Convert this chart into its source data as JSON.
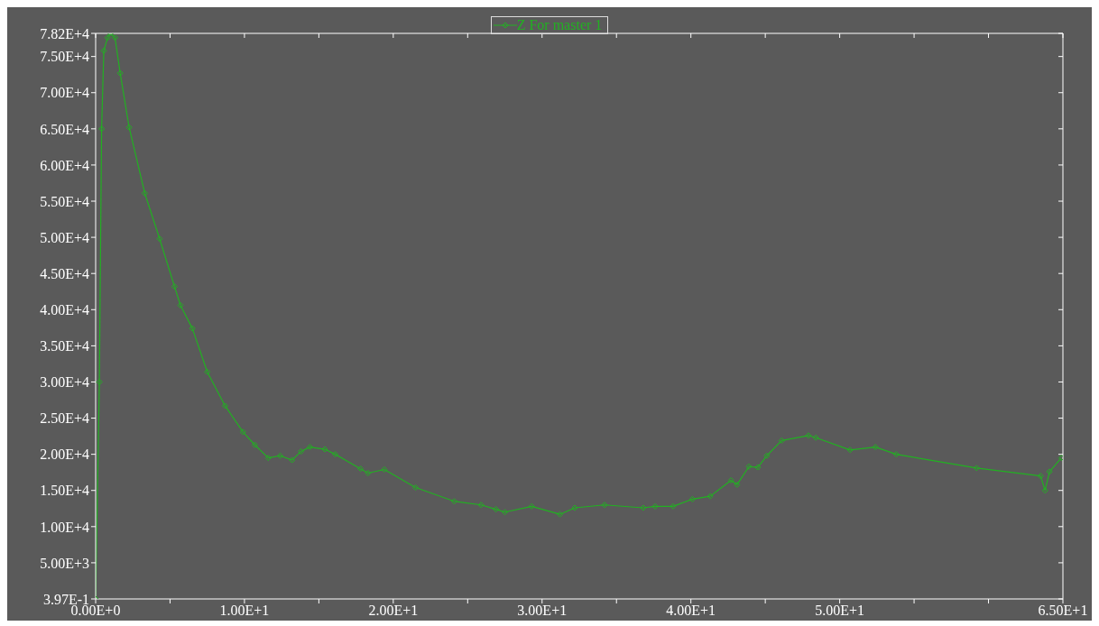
{
  "chart_data": {
    "type": "line",
    "x": [
      0,
      0.25,
      0.4,
      0.55,
      0.8,
      1.0,
      1.3,
      1.65,
      2.25,
      3.3,
      4.3,
      5.3,
      5.7,
      6.5,
      7.5,
      8.7,
      9.9,
      10.7,
      11.6,
      12.4,
      13.2,
      13.8,
      14.4,
      15.4,
      16.1,
      17.8,
      18.3,
      19.4,
      21.5,
      24.1,
      25.9,
      26.9,
      27.5,
      29.3,
      31.2,
      32.2,
      34.2,
      36.8,
      37.6,
      38.8,
      40.1,
      41.3,
      42.7,
      43.1,
      43.9,
      44.5,
      45.1,
      46.1,
      47.9,
      48.4,
      50.7,
      52.4,
      53.8,
      59.2,
      63.5,
      63.8,
      64.1,
      64.9
    ],
    "series": [
      {
        "name": "Z For master 1",
        "color": "#22b022",
        "values": [
          0.397,
          30000,
          65000,
          75800,
          77600,
          78200,
          77600,
          72700,
          65200,
          56100,
          49800,
          43200,
          40600,
          37400,
          31400,
          26700,
          23100,
          21300,
          19500,
          19800,
          19200,
          20400,
          21000,
          20700,
          20000,
          18000,
          17400,
          17900,
          15400,
          13500,
          13000,
          12400,
          12000,
          12800,
          11700,
          12600,
          13000,
          12600,
          12800,
          12800,
          13800,
          14200,
          16400,
          15800,
          18300,
          18200,
          19800,
          21900,
          22600,
          22300,
          20600,
          21000,
          20000,
          18100,
          17000,
          15000,
          17600,
          19500
        ]
      }
    ],
    "xlim": [
      0,
      65
    ],
    "xticks": [
      {
        "value": 0,
        "label": "0.00E+0"
      },
      {
        "value": 5,
        "label": null
      },
      {
        "value": 10,
        "label": "1.00E+1"
      },
      {
        "value": 15,
        "label": null
      },
      {
        "value": 20,
        "label": "2.00E+1"
      },
      {
        "value": 25,
        "label": null
      },
      {
        "value": 30,
        "label": "3.00E+1"
      },
      {
        "value": 35,
        "label": null
      },
      {
        "value": 40,
        "label": "4.00E+1"
      },
      {
        "value": 45,
        "label": null
      },
      {
        "value": 50,
        "label": "5.00E+1"
      },
      {
        "value": 55,
        "label": null
      },
      {
        "value": 60,
        "label": null
      },
      {
        "value": 65,
        "label": "6.50E+1"
      }
    ],
    "ylim": [
      0.397,
      78200
    ],
    "yticks": [
      {
        "value": 0.397,
        "label": "3.97E-1"
      },
      {
        "value": 5000,
        "label": "5.00E+3"
      },
      {
        "value": 10000,
        "label": "1.00E+4"
      },
      {
        "value": 15000,
        "label": "1.50E+4"
      },
      {
        "value": 20000,
        "label": "2.00E+4"
      },
      {
        "value": 25000,
        "label": "2.50E+4"
      },
      {
        "value": 30000,
        "label": "3.00E+4"
      },
      {
        "value": 35000,
        "label": "3.50E+4"
      },
      {
        "value": 40000,
        "label": "4.00E+4"
      },
      {
        "value": 45000,
        "label": "4.50E+4"
      },
      {
        "value": 50000,
        "label": "5.00E+4"
      },
      {
        "value": 55000,
        "label": "5.50E+4"
      },
      {
        "value": 60000,
        "label": "6.00E+4"
      },
      {
        "value": 65000,
        "label": "6.50E+4"
      },
      {
        "value": 70000,
        "label": "7.00E+4"
      },
      {
        "value": 75000,
        "label": "7.50E+4"
      },
      {
        "value": 78200,
        "label": "7.82E+4"
      }
    ],
    "grid": false,
    "legend": "top",
    "marker": "diamond",
    "line_style": "solid"
  }
}
